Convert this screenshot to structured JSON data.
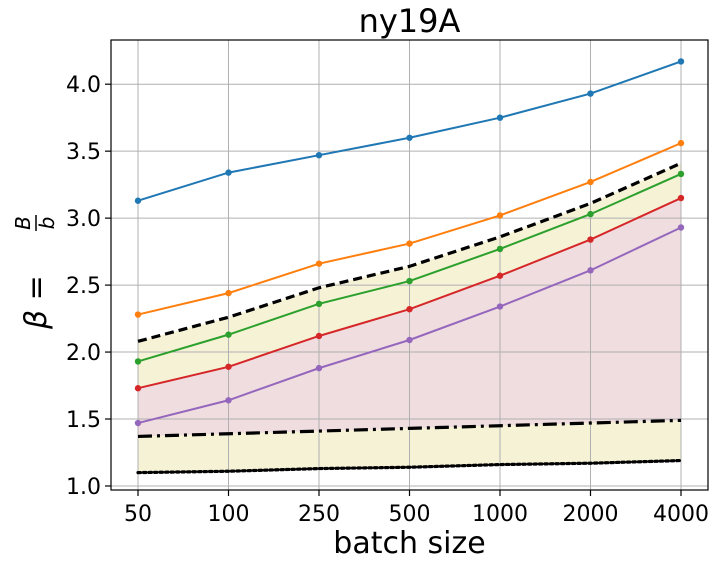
{
  "chart_data": {
    "type": "line",
    "title": "ny19A",
    "xlabel": "batch size",
    "ylabel": {
      "lhs": "β =",
      "numerator": "B",
      "denominator": "b"
    },
    "categories": [
      "50",
      "100",
      "250",
      "500",
      "1000",
      "2000",
      "4000"
    ],
    "ylim": [
      0.97,
      4.33
    ],
    "yticks": [
      1.0,
      1.5,
      2.0,
      2.5,
      3.0,
      3.5,
      4.0
    ],
    "ytick_labels": [
      "1.0",
      "1.5",
      "2.0",
      "2.5",
      "3.0",
      "3.5",
      "4.0"
    ],
    "grid": true,
    "series": [
      {
        "name": "blue",
        "color": "#1f77b4",
        "style": "solid-markers",
        "values": [
          3.13,
          3.34,
          3.47,
          3.6,
          3.75,
          3.93,
          4.17
        ]
      },
      {
        "name": "orange",
        "color": "#ff7f0e",
        "style": "solid-markers",
        "values": [
          2.28,
          2.44,
          2.66,
          2.81,
          3.02,
          3.27,
          3.56
        ]
      },
      {
        "name": "black-dashed",
        "color": "#000000",
        "style": "dashed",
        "values": [
          2.08,
          2.26,
          2.48,
          2.64,
          2.86,
          3.11,
          3.41
        ]
      },
      {
        "name": "green",
        "color": "#2ca02c",
        "style": "solid-markers",
        "values": [
          1.93,
          2.13,
          2.36,
          2.53,
          2.77,
          3.03,
          3.33
        ]
      },
      {
        "name": "red",
        "color": "#d62728",
        "style": "solid-markers",
        "values": [
          1.73,
          1.89,
          2.12,
          2.32,
          2.57,
          2.84,
          3.15
        ]
      },
      {
        "name": "purple",
        "color": "#9467bd",
        "style": "solid-markers",
        "values": [
          1.47,
          1.64,
          1.88,
          2.09,
          2.34,
          2.61,
          2.93
        ]
      },
      {
        "name": "black-dashdot",
        "color": "#000000",
        "style": "dashdot",
        "values": [
          1.37,
          1.39,
          1.41,
          1.43,
          1.45,
          1.47,
          1.49
        ]
      },
      {
        "name": "black-dotted",
        "color": "#000000",
        "style": "dotted",
        "values": [
          1.1,
          1.11,
          1.13,
          1.14,
          1.16,
          1.17,
          1.19
        ]
      }
    ],
    "fills": [
      {
        "name": "yellow-band",
        "color": "#f5f2d6",
        "upper": "black-dashed",
        "lower": "black-dotted"
      },
      {
        "name": "pink-band",
        "color": "#f0dde0",
        "upper": "red",
        "lower": "black-dashdot"
      }
    ]
  }
}
